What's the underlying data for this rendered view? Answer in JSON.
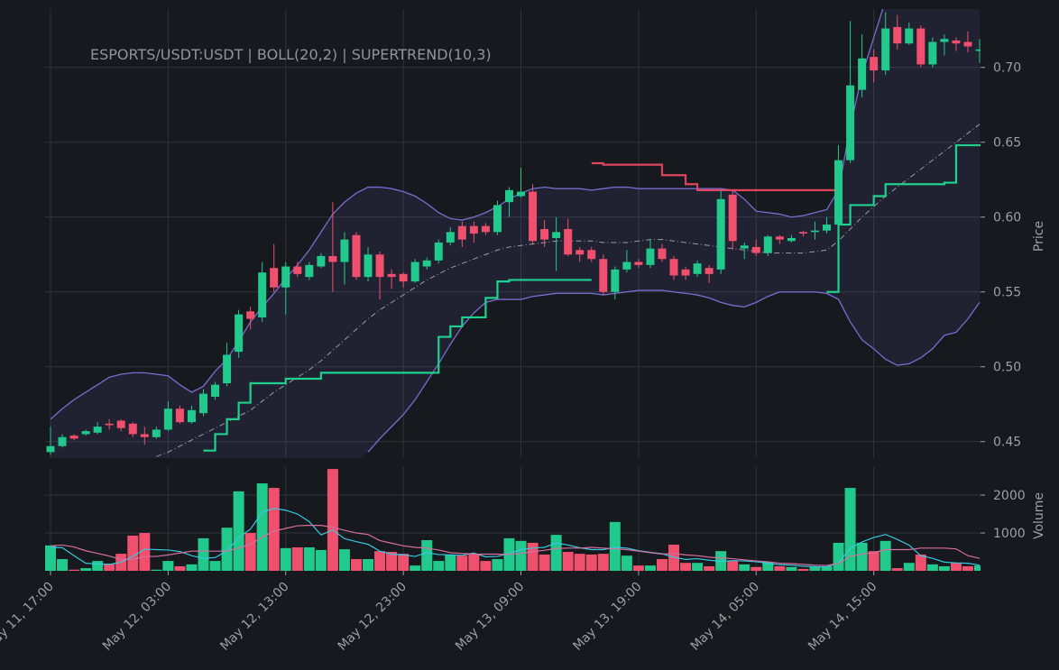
{
  "chart_data": {
    "type": "candlestick",
    "title": "ESPORTS/USDT:USDT | BOLL(20,2) | SUPERTREND(10,3)",
    "ylabel": "Price",
    "up_color": "#22c98c",
    "down_color": "#f0506e",
    "grid": true,
    "ylim": [
      0.439,
      0.739
    ],
    "yticks": [
      {
        "value": 0.45,
        "label": "0.45"
      },
      {
        "value": 0.5,
        "label": "0.50"
      },
      {
        "value": 0.55,
        "label": "0.55"
      },
      {
        "value": 0.6,
        "label": "0.60"
      },
      {
        "value": 0.65,
        "label": "0.65"
      },
      {
        "value": 0.7,
        "label": "0.70"
      }
    ],
    "categories": [
      "May 11, 17:00",
      null,
      null,
      null,
      null,
      null,
      null,
      null,
      null,
      null,
      "May 12, 03:00",
      null,
      null,
      null,
      null,
      null,
      null,
      null,
      null,
      null,
      "May 12, 13:00",
      null,
      null,
      null,
      null,
      null,
      null,
      null,
      null,
      null,
      "May 12, 23:00",
      null,
      null,
      null,
      null,
      null,
      null,
      null,
      null,
      null,
      "May 13, 09:00",
      null,
      null,
      null,
      null,
      null,
      null,
      null,
      null,
      null,
      "May 13, 19:00",
      null,
      null,
      null,
      null,
      null,
      null,
      null,
      null,
      null,
      "May 14, 05:00",
      null,
      null,
      null,
      null,
      null,
      null,
      null,
      null,
      null,
      "May 14, 15:00",
      null,
      null,
      null,
      null,
      null,
      null,
      null,
      null,
      null
    ],
    "open": [
      0.443,
      0.447,
      0.454,
      0.455,
      0.456,
      0.462,
      0.464,
      0.462,
      0.455,
      0.453,
      0.458,
      0.472,
      0.463,
      0.469,
      0.48,
      0.489,
      0.51,
      0.537,
      0.533,
      0.566,
      0.553,
      0.567,
      0.56,
      0.567,
      0.574,
      0.57,
      0.588,
      0.56,
      0.575,
      0.562,
      0.562,
      0.557,
      0.567,
      0.571,
      0.583,
      0.594,
      0.594,
      0.594,
      0.59,
      0.61,
      0.614,
      0.617,
      0.592,
      0.586,
      0.592,
      0.578,
      0.578,
      0.572,
      0.55,
      0.565,
      0.57,
      0.568,
      0.579,
      0.572,
      0.565,
      0.562,
      0.566,
      0.565,
      0.615,
      0.579,
      0.58,
      0.576,
      0.587,
      0.584,
      0.59,
      0.59,
      0.591,
      0.595,
      0.638,
      0.685,
      0.707,
      0.698,
      0.727,
      0.716,
      0.726,
      0.702,
      0.717,
      0.718,
      0.717,
      0.711
    ],
    "high": [
      0.46,
      0.455,
      0.455,
      0.458,
      0.463,
      0.465,
      0.465,
      0.463,
      0.46,
      0.46,
      0.477,
      0.474,
      0.474,
      0.485,
      0.49,
      0.516,
      0.538,
      0.54,
      0.57,
      0.582,
      0.57,
      0.57,
      0.57,
      0.576,
      0.61,
      0.59,
      0.59,
      0.58,
      0.577,
      0.565,
      0.563,
      0.572,
      0.573,
      0.585,
      0.593,
      0.597,
      0.597,
      0.596,
      0.611,
      0.62,
      0.633,
      0.622,
      0.598,
      0.6,
      0.599,
      0.58,
      0.58,
      0.575,
      0.567,
      0.578,
      0.572,
      0.585,
      0.582,
      0.574,
      0.567,
      0.571,
      0.568,
      0.618,
      0.618,
      0.583,
      0.585,
      0.588,
      0.588,
      0.588,
      0.591,
      0.597,
      0.6,
      0.648,
      0.731,
      0.722,
      0.712,
      0.737,
      0.735,
      0.73,
      0.728,
      0.72,
      0.722,
      0.72,
      0.724,
      0.719
    ],
    "low": [
      0.441,
      0.446,
      0.451,
      0.454,
      0.455,
      0.458,
      0.457,
      0.453,
      0.448,
      0.452,
      0.457,
      0.462,
      0.462,
      0.467,
      0.478,
      0.487,
      0.506,
      0.525,
      0.53,
      0.55,
      0.535,
      0.56,
      0.558,
      0.566,
      0.55,
      0.555,
      0.558,
      0.557,
      0.545,
      0.552,
      0.553,
      0.556,
      0.565,
      0.569,
      0.581,
      0.58,
      0.583,
      0.588,
      0.588,
      0.6,
      0.613,
      0.582,
      0.58,
      0.564,
      0.574,
      0.57,
      0.57,
      0.548,
      0.545,
      0.563,
      0.566,
      0.566,
      0.57,
      0.558,
      0.558,
      0.56,
      0.556,
      0.562,
      0.578,
      0.572,
      0.574,
      0.574,
      0.582,
      0.583,
      0.587,
      0.585,
      0.589,
      0.593,
      0.636,
      0.68,
      0.69,
      0.695,
      0.712,
      0.715,
      0.7,
      0.7,
      0.708,
      0.711,
      0.71,
      0.703
    ],
    "close": [
      0.447,
      0.453,
      0.452,
      0.457,
      0.46,
      0.461,
      0.459,
      0.455,
      0.453,
      0.458,
      0.472,
      0.463,
      0.471,
      0.482,
      0.488,
      0.508,
      0.535,
      0.532,
      0.563,
      0.553,
      0.567,
      0.562,
      0.568,
      0.574,
      0.57,
      0.585,
      0.56,
      0.575,
      0.56,
      0.56,
      0.557,
      0.57,
      0.571,
      0.583,
      0.59,
      0.585,
      0.589,
      0.59,
      0.608,
      0.618,
      0.617,
      0.584,
      0.585,
      0.59,
      0.575,
      0.575,
      0.572,
      0.55,
      0.565,
      0.57,
      0.568,
      0.579,
      0.572,
      0.561,
      0.561,
      0.569,
      0.562,
      0.612,
      0.584,
      0.581,
      0.576,
      0.587,
      0.585,
      0.586,
      0.589,
      0.591,
      0.595,
      0.638,
      0.688,
      0.706,
      0.698,
      0.726,
      0.716,
      0.726,
      0.702,
      0.717,
      0.719,
      0.716,
      0.714,
      0.712
    ],
    "bands": {
      "color": "#7b6cd0",
      "middle_color": "#9a9aa8",
      "fill": "rgba(110,110,200,0.12)",
      "upper": [
        0.465,
        0.472,
        0.478,
        0.483,
        0.488,
        0.493,
        0.495,
        0.496,
        0.496,
        0.495,
        0.494,
        0.488,
        0.483,
        0.487,
        0.497,
        0.505,
        0.517,
        0.53,
        0.54,
        0.549,
        0.559,
        0.568,
        0.578,
        0.59,
        0.602,
        0.61,
        0.616,
        0.62,
        0.62,
        0.619,
        0.617,
        0.614,
        0.609,
        0.603,
        0.599,
        0.598,
        0.6,
        0.603,
        0.607,
        0.612,
        0.616,
        0.619,
        0.62,
        0.619,
        0.619,
        0.619,
        0.618,
        0.619,
        0.62,
        0.62,
        0.619,
        0.619,
        0.619,
        0.619,
        0.619,
        0.619,
        0.619,
        0.619,
        0.618,
        0.612,
        0.604,
        0.603,
        0.602,
        0.6,
        0.601,
        0.603,
        0.605,
        0.618,
        0.66,
        0.695,
        0.72,
        0.745,
        0.76,
        0.77,
        0.775,
        0.778,
        0.78,
        0.78,
        0.779,
        0.778
      ],
      "middle": [
        null,
        null,
        null,
        null,
        null,
        null,
        null,
        null,
        null,
        0.44,
        0.443,
        0.447,
        0.451,
        0.455,
        0.459,
        0.463,
        0.467,
        0.471,
        0.477,
        0.483,
        0.488,
        0.493,
        0.498,
        0.504,
        0.511,
        0.518,
        0.525,
        0.532,
        0.538,
        0.543,
        0.548,
        0.553,
        0.558,
        0.562,
        0.566,
        0.569,
        0.572,
        0.575,
        0.578,
        0.58,
        0.581,
        0.582,
        0.583,
        0.584,
        0.584,
        0.584,
        0.584,
        0.583,
        0.583,
        0.583,
        0.584,
        0.585,
        0.585,
        0.584,
        0.583,
        0.582,
        0.581,
        0.58,
        0.579,
        0.578,
        0.577,
        0.576,
        0.576,
        0.576,
        0.576,
        0.577,
        0.578,
        0.584,
        0.592,
        0.6,
        0.607,
        0.614,
        0.62,
        0.626,
        0.632,
        0.638,
        0.644,
        0.65,
        0.656,
        0.662
      ],
      "lower": [
        null,
        null,
        null,
        null,
        null,
        null,
        null,
        null,
        null,
        null,
        null,
        null,
        null,
        null,
        null,
        null,
        null,
        null,
        null,
        null,
        null,
        null,
        null,
        null,
        null,
        null,
        null,
        0.443,
        0.452,
        0.46,
        0.468,
        0.478,
        0.49,
        0.502,
        0.515,
        0.527,
        0.536,
        0.543,
        0.545,
        0.545,
        0.545,
        0.547,
        0.548,
        0.549,
        0.549,
        0.549,
        0.549,
        0.548,
        0.549,
        0.55,
        0.551,
        0.551,
        0.551,
        0.55,
        0.549,
        0.548,
        0.546,
        0.543,
        0.541,
        0.54,
        0.543,
        0.547,
        0.55,
        0.55,
        0.55,
        0.55,
        0.549,
        0.545,
        0.53,
        0.518,
        0.512,
        0.505,
        0.501,
        0.502,
        0.506,
        0.512,
        0.521,
        0.523,
        0.532,
        0.543
      ]
    },
    "supertrend": [
      {
        "color": "#1fd18e",
        "values": [
          null,
          null,
          null,
          null,
          null,
          null,
          null,
          null,
          null,
          null,
          null,
          null,
          null,
          0.444,
          0.455,
          0.465,
          0.476,
          0.489,
          0.489,
          0.489,
          0.492,
          0.492,
          0.492,
          0.496,
          0.496,
          0.496,
          0.496,
          0.496,
          0.496,
          0.496,
          0.496,
          0.496,
          0.496,
          0.52,
          0.527,
          0.533,
          0.533,
          0.546,
          0.557,
          0.558,
          0.558,
          0.558,
          0.558,
          0.558,
          0.558,
          0.558,
          null,
          null,
          null,
          null,
          null,
          null,
          null,
          null,
          null,
          null,
          null,
          null,
          null,
          null,
          null,
          null,
          null,
          null,
          null,
          null,
          0.55,
          0.595,
          0.608,
          0.608,
          0.614,
          0.622,
          0.622,
          0.622,
          0.622,
          0.622,
          0.623,
          0.648,
          0.648,
          0.648
        ]
      },
      {
        "color": "#e0455f",
        "values": [
          null,
          null,
          null,
          null,
          null,
          null,
          null,
          null,
          null,
          null,
          null,
          null,
          null,
          null,
          null,
          null,
          null,
          null,
          null,
          null,
          null,
          null,
          null,
          null,
          null,
          null,
          null,
          null,
          null,
          null,
          null,
          null,
          null,
          null,
          null,
          null,
          null,
          null,
          null,
          null,
          null,
          null,
          null,
          null,
          null,
          null,
          0.636,
          0.635,
          0.635,
          0.635,
          0.635,
          0.635,
          0.628,
          0.628,
          0.622,
          0.618,
          0.618,
          0.618,
          0.618,
          0.618,
          0.618,
          0.618,
          0.618,
          0.618,
          0.618,
          0.618,
          0.618,
          null,
          null,
          null,
          null,
          null,
          null,
          null,
          null,
          null,
          null,
          null,
          null,
          null
        ]
      }
    ],
    "volume": {
      "type": "bar",
      "ylabel": "Volume",
      "ylim": [
        0,
        2740
      ],
      "yticks": [
        1000,
        2000
      ],
      "values": [
        670,
        310,
        30,
        70,
        260,
        190,
        450,
        930,
        1000,
        30,
        260,
        120,
        170,
        860,
        260,
        1140,
        2100,
        1000,
        2310,
        2190,
        600,
        620,
        620,
        550,
        2690,
        570,
        310,
        310,
        520,
        500,
        450,
        140,
        810,
        260,
        430,
        400,
        450,
        260,
        310,
        860,
        790,
        740,
        430,
        950,
        500,
        450,
        430,
        450,
        1290,
        400,
        140,
        140,
        310,
        690,
        210,
        210,
        120,
        520,
        260,
        170,
        100,
        240,
        120,
        100,
        50,
        100,
        120,
        740,
        2190,
        740,
        520,
        790,
        70,
        210,
        430,
        170,
        120,
        210,
        120,
        140
      ],
      "averages": [
        {
          "color": "#38c8e0",
          "values": [
            620,
            610,
            400,
            200,
            180,
            170,
            230,
            380,
            570,
            560,
            550,
            510,
            400,
            330,
            350,
            520,
            880,
            1100,
            1550,
            1650,
            1600,
            1500,
            1300,
            950,
            1080,
            850,
            770,
            700,
            520,
            440,
            420,
            380,
            480,
            430,
            420,
            410,
            470,
            370,
            380,
            460,
            560,
            600,
            620,
            740,
            680,
            610,
            560,
            560,
            620,
            600,
            530,
            490,
            450,
            360,
            300,
            320,
            280,
            250,
            270,
            260,
            240,
            200,
            160,
            150,
            120,
            110,
            100,
            210,
            600,
            760,
            880,
            960,
            830,
            680,
            400,
            330,
            230,
            210,
            200,
            150
          ]
        },
        {
          "color": "#d56fa0",
          "values": [
            660,
            680,
            630,
            530,
            460,
            390,
            300,
            300,
            380,
            380,
            420,
            470,
            520,
            520,
            520,
            520,
            600,
            700,
            890,
            1050,
            1120,
            1190,
            1200,
            1200,
            1150,
            1070,
            1000,
            960,
            800,
            730,
            660,
            620,
            600,
            550,
            480,
            460,
            440,
            440,
            440,
            430,
            460,
            510,
            540,
            590,
            600,
            600,
            620,
            600,
            580,
            560,
            520,
            480,
            440,
            460,
            420,
            400,
            360,
            340,
            320,
            290,
            260,
            240,
            200,
            190,
            170,
            150,
            140,
            200,
            380,
            440,
            480,
            560,
            560,
            560,
            600,
            600,
            600,
            580,
            400,
            330
          ]
        }
      ]
    }
  }
}
